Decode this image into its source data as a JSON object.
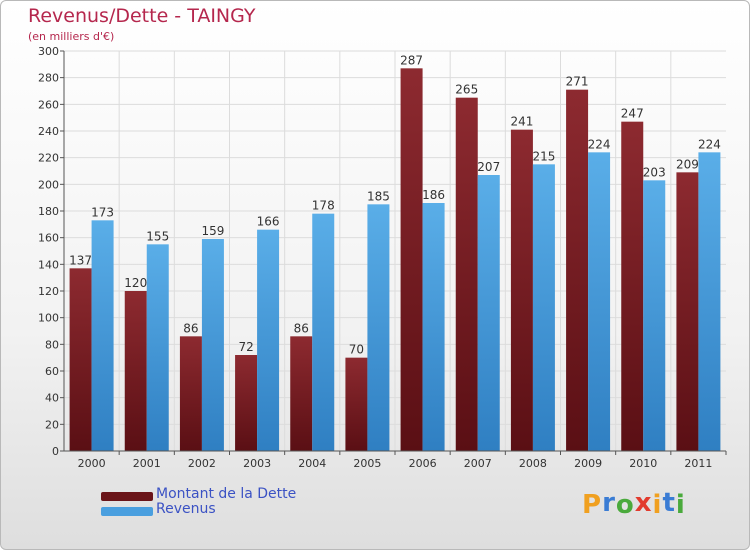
{
  "title": "Revenus/Dette - TAINGY",
  "subtitle": "(en milliers d'€)",
  "colors": {
    "debt": "#7a1e22",
    "revenue": "#4a9fdf",
    "title": "#b5274d",
    "legend_text": "#3b52c4"
  },
  "chart_data": {
    "type": "bar",
    "title": "Revenus/Dette - TAINGY",
    "ylabel": "(en milliers d'€)",
    "xlabel": "",
    "ylim": [
      0,
      300
    ],
    "ytick_step": 20,
    "grid": true,
    "categories": [
      "2000",
      "2001",
      "2002",
      "2003",
      "2004",
      "2005",
      "2006",
      "2007",
      "2008",
      "2009",
      "2010",
      "2011"
    ],
    "series": [
      {
        "name": "Montant de la Dette",
        "values": [
          137,
          120,
          86,
          72,
          86,
          70,
          287,
          265,
          241,
          271,
          247,
          209
        ]
      },
      {
        "name": "Revenus",
        "values": [
          173,
          155,
          159,
          166,
          178,
          185,
          186,
          207,
          215,
          224,
          203,
          224
        ]
      }
    ],
    "legend_position": "bottom-left"
  },
  "legend": {
    "debt_label": "Montant de la Dette",
    "revenue_label": "Revenus"
  },
  "logo": {
    "text": "Proxiti",
    "letters": [
      "P",
      "r",
      "o",
      "x",
      "i",
      "t",
      "i"
    ],
    "letter_colors": [
      "#f0a020",
      "#3a7cd4",
      "#4aaa3c",
      "#e23b2e",
      "#f0a020",
      "#3a7cd4",
      "#4aaa3c"
    ]
  }
}
